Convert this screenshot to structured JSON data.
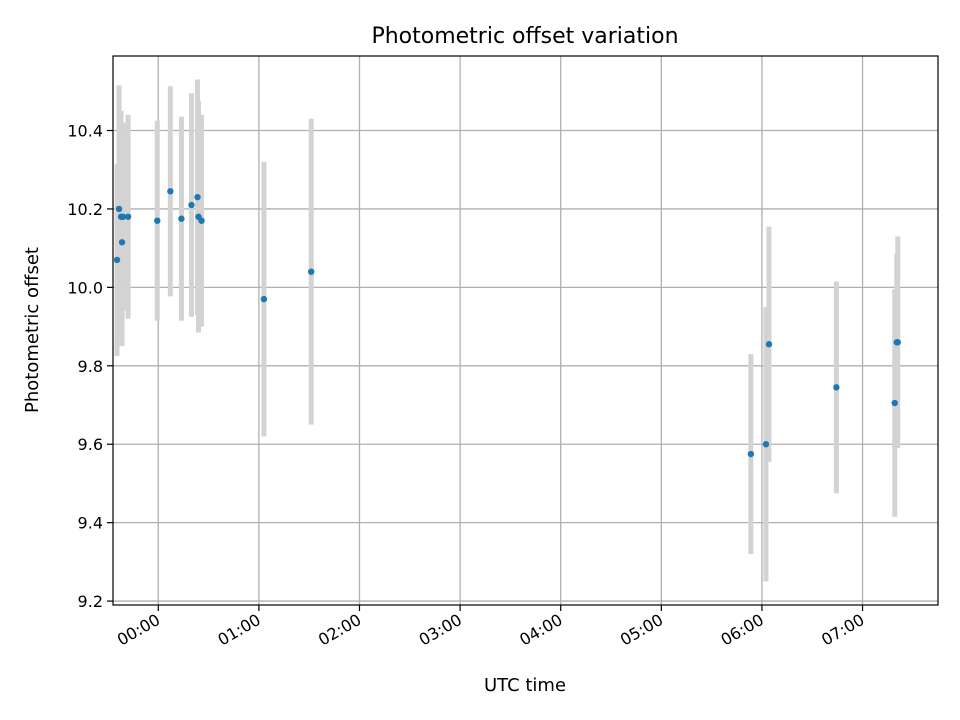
{
  "chart_data": {
    "type": "scatter",
    "title": "Photometric offset variation",
    "xlabel": "UTC time",
    "ylabel": "Photometric offset",
    "x_unit": "UTC time (HH:MM)",
    "xlim": [
      "-00:27",
      "07:45"
    ],
    "ylim": [
      9.19,
      10.59
    ],
    "x_ticks": [
      "00:00",
      "01:00",
      "02:00",
      "03:00",
      "04:00",
      "05:00",
      "06:00",
      "07:00"
    ],
    "y_ticks": [
      9.2,
      9.4,
      9.6,
      9.8,
      10.0,
      10.2,
      10.4
    ],
    "grid": true,
    "point_color": "#1f77b4",
    "errorbar_color": "#d3d3d3",
    "points": [
      {
        "x": "-00:24.6",
        "y": 10.07,
        "yerr": 0.245
      },
      {
        "x": "-00:23.4",
        "y": 10.2,
        "yerr": 0.315
      },
      {
        "x": "-00:22.2",
        "y": 10.18,
        "yerr": 0.27
      },
      {
        "x": "-00:21.6",
        "y": 10.115,
        "yerr": 0.265
      },
      {
        "x": "-00:21.0",
        "y": 10.18,
        "yerr": 0.24
      },
      {
        "x": "-00:18.0",
        "y": 10.18,
        "yerr": 0.26
      },
      {
        "x": "-00:00.6",
        "y": 10.17,
        "yerr": 0.255
      },
      {
        "x": "00:07.2",
        "y": 10.245,
        "yerr": 0.268
      },
      {
        "x": "00:13.8",
        "y": 10.175,
        "yerr": 0.26
      },
      {
        "x": "00:19.8",
        "y": 10.21,
        "yerr": 0.285
      },
      {
        "x": "00:23.4",
        "y": 10.23,
        "yerr": 0.3
      },
      {
        "x": "00:24.0",
        "y": 10.18,
        "yerr": 0.295
      },
      {
        "x": "00:25.8",
        "y": 10.17,
        "yerr": 0.27
      },
      {
        "x": "01:03.0",
        "y": 9.97,
        "yerr": 0.35
      },
      {
        "x": "01:31.2",
        "y": 10.04,
        "yerr": 0.39
      },
      {
        "x": "05:53.4",
        "y": 9.575,
        "yerr": 0.255
      },
      {
        "x": "06:02.4",
        "y": 9.6,
        "yerr": 0.35
      },
      {
        "x": "06:04.2",
        "y": 9.855,
        "yerr": 0.3
      },
      {
        "x": "06:44.4",
        "y": 9.745,
        "yerr": 0.27
      },
      {
        "x": "07:19.2",
        "y": 9.705,
        "yerr": 0.29
      },
      {
        "x": "07:20.4",
        "y": 9.86,
        "yerr": 0.225
      },
      {
        "x": "07:21.0",
        "y": 9.86,
        "yerr": 0.27
      }
    ]
  }
}
